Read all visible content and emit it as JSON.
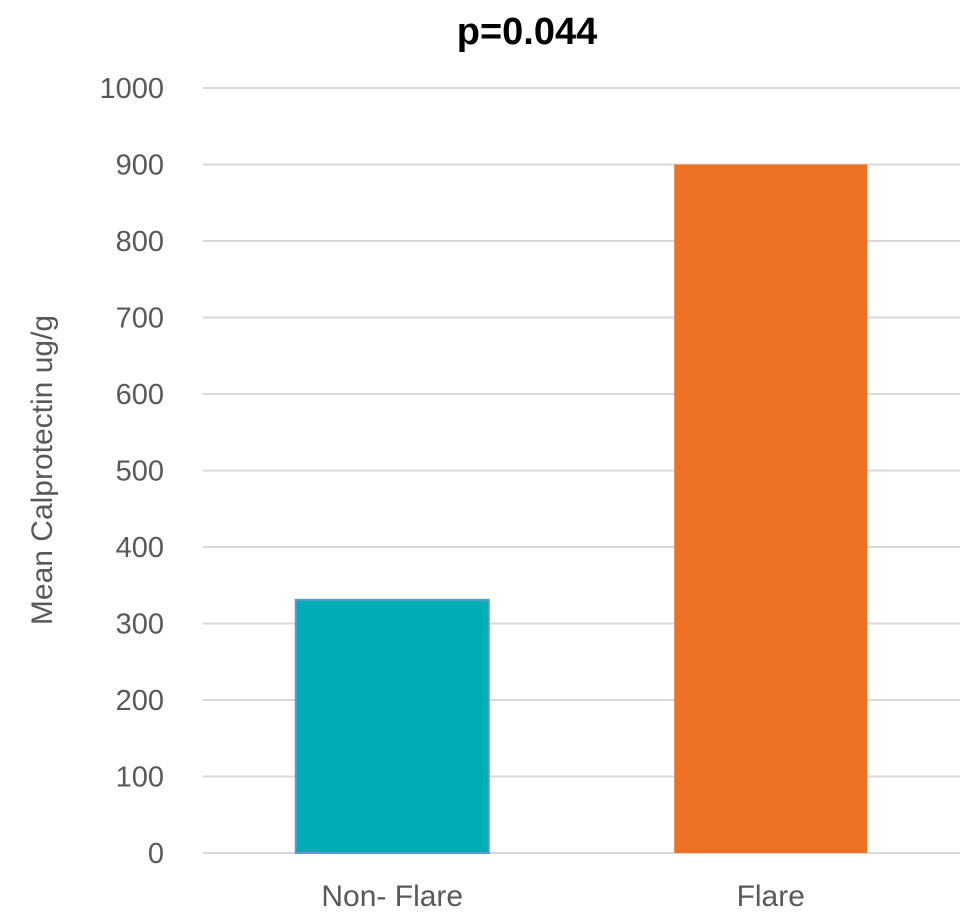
{
  "chart_data": {
    "type": "bar",
    "title": "p=0.044",
    "xlabel": "",
    "ylabel": "Mean Calprotectin ug/g",
    "categories": [
      "Non- Flare",
      "Flare"
    ],
    "values": [
      331,
      900
    ],
    "colors": [
      "#00adb5",
      "#ed7123"
    ],
    "ylim": [
      0,
      1000
    ],
    "yticks": [
      0,
      100,
      200,
      300,
      400,
      500,
      600,
      700,
      800,
      900,
      1000
    ],
    "grid": true,
    "legend": "none"
  }
}
